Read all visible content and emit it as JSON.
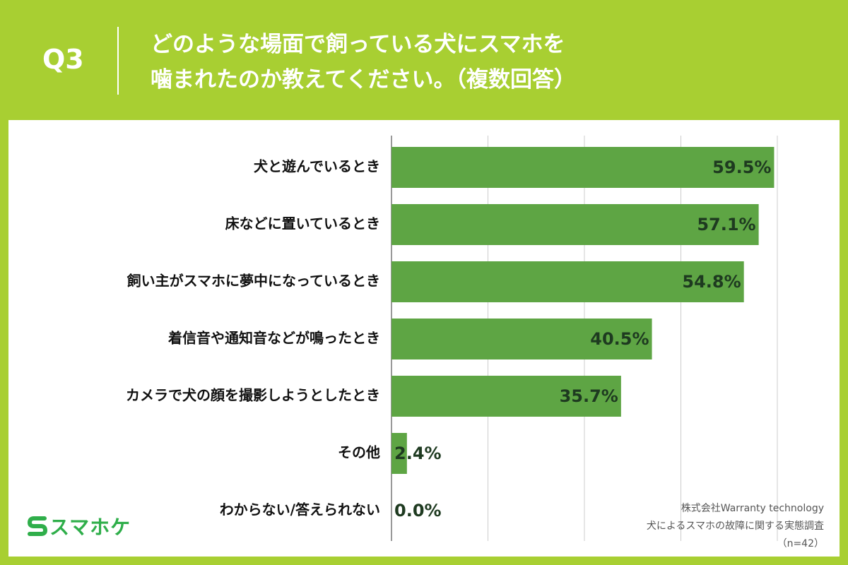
{
  "header": {
    "q_label": "Q3",
    "question_line1": "どのような場面で飼っている犬にスマホを",
    "question_line2": "噛まれたのか教えてください。（複数回答）"
  },
  "logo": {
    "icon": "s-logo-icon",
    "text": "スマホケ"
  },
  "source": {
    "line1": "株式会社Warranty technology",
    "line2": "犬によるスマホの故障に関する実態調査",
    "line3": "（n=42）"
  },
  "colors": {
    "background": "#a8cf32",
    "bar": "#5ea544",
    "value_text": "#1e3a20",
    "logo": "#2fae4a"
  },
  "chart_data": {
    "type": "bar",
    "orientation": "horizontal",
    "categories": [
      "犬と遊んでいるとき",
      "床などに置いているとき",
      "飼い主がスマホに夢中になっているとき",
      "着信音や通知音などが鳴ったとき",
      "カメラで犬の顔を撮影しようとしたとき",
      "その他",
      "わからない/答えられない"
    ],
    "values": [
      59.5,
      57.1,
      54.8,
      40.5,
      35.7,
      2.4,
      0.0
    ],
    "value_labels": [
      "59.5%",
      "57.1%",
      "54.8%",
      "40.5%",
      "35.7%",
      "2.4%",
      "0.0%"
    ],
    "xlim": [
      0,
      60
    ],
    "grid": true
  }
}
